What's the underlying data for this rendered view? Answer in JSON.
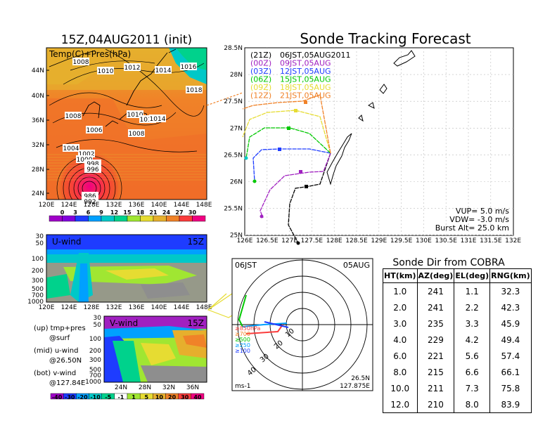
{
  "init_title": "15Z,04AUG2011 (init)",
  "forecast_title": "Sonde Tracking Forecast",
  "map": {
    "field_label": "Temp(C)+Pres(hPa)",
    "lat_labels": [
      "44N",
      "40N",
      "36N",
      "32N",
      "28N",
      "24N"
    ],
    "lon_labels": [
      "120E",
      "124E",
      "128E",
      "132E",
      "136E",
      "140E",
      "144E",
      "148E"
    ],
    "isobar_labels": [
      "1008",
      "1010",
      "1012",
      "1014",
      "1016",
      "1018",
      "1008",
      "1010",
      "1012",
      "1014",
      "1006",
      "1008",
      "1004",
      "1002",
      "1000",
      "998",
      "996",
      "986",
      "992"
    ],
    "colorbar_ticks": [
      "0",
      "3",
      "6",
      "9",
      "12",
      "15",
      "18",
      "21",
      "24",
      "27",
      "30"
    ],
    "colorbar_colors": [
      "#a000c8",
      "#8200dc",
      "#1e3cff",
      "#00a0ff",
      "#00c8c8",
      "#00d28c",
      "#a0e632",
      "#e6dc32",
      "#e6af2d",
      "#f08228",
      "#fa3c3c",
      "#f00082"
    ]
  },
  "uwind": {
    "label": "U-wind",
    "time": "15Z",
    "p_labels": [
      "30",
      "50",
      "100",
      "200",
      "300",
      "500",
      "700",
      "1000"
    ],
    "lon_labels": [
      "120E",
      "124E",
      "128E",
      "132E",
      "136E",
      "140E",
      "144E",
      "148E"
    ]
  },
  "vwind": {
    "label": "V-wind",
    "time": "15Z",
    "p_labels": [
      "30",
      "50",
      "100",
      "200",
      "300",
      "500",
      "700",
      "1000"
    ],
    "lat_labels": [
      "24N",
      "28N",
      "32N",
      "36N"
    ],
    "colorbar_ticks": [
      "-40",
      "-30",
      "-20",
      "-10",
      "-5",
      "-1",
      "1",
      "5",
      "10",
      "20",
      "30",
      "40"
    ],
    "colorbar_colors": [
      "#a000c8",
      "#1e3cff",
      "#00a0ff",
      "#00c8c8",
      "#00d28c",
      "#ffffff",
      "#a0e632",
      "#e6dc32",
      "#e6af2d",
      "#f08228",
      "#fa3c3c",
      "#f00082"
    ]
  },
  "legend_notes": {
    "up": "(up) tmp+pres",
    "up2": "@surf",
    "mid": "(mid) u-wind",
    "mid2": "@26.50N",
    "bot": "(bot) v-wind",
    "bot2": "@127.84E"
  },
  "tracking": {
    "lat_labels": [
      "28.5N",
      "28N",
      "27.5N",
      "27N",
      "26.5N",
      "26N",
      "25.5N",
      "25N"
    ],
    "lon_labels": [
      "126E",
      "126.5E",
      "127E",
      "127.5E",
      "128E",
      "128.5E",
      "129E",
      "129.5E",
      "130E",
      "130.5E",
      "131E",
      "131.5E",
      "132E"
    ],
    "launches": [
      {
        "code": "(21Z)",
        "time": "06JST,05AUG2011",
        "color": "#000000"
      },
      {
        "code": "(00Z)",
        "time": "09JST,05AUG",
        "color": "#a020c0"
      },
      {
        "code": "(03Z)",
        "time": "12JST,05AUG",
        "color": "#1e3cff"
      },
      {
        "code": "(06Z)",
        "time": "15JST,05AUG",
        "color": "#00c800"
      },
      {
        "code": "(09Z)",
        "time": "18JST,05AUG",
        "color": "#e6dc32"
      },
      {
        "code": "(12Z)",
        "time": "21JST,05AUG",
        "color": "#f08228"
      }
    ],
    "params": [
      "VUP= 5.0 m/s",
      "VDW= -3.0 m/s",
      "Burst Alt= 25.0 km"
    ]
  },
  "polar": {
    "time_label": "06JST",
    "date_label": "05AUG",
    "range_labels": [
      "10",
      "20",
      "30",
      "40"
    ],
    "level_labels": [
      "≥850hPa",
      "≥700",
      "≥500",
      "≥250",
      "≥100"
    ],
    "level_colors": [
      "#fa3c3c",
      "#f08228",
      "#00c800",
      "#00a0ff",
      "#1e3cff"
    ],
    "unit": "ms-1",
    "loc1": "26.5N",
    "loc2": "127.875E"
  },
  "cobra": {
    "title": "Sonde Dir from COBRA",
    "headers": [
      "HT(km)",
      "AZ(deg)",
      "EL(deg)",
      "RNG(km)"
    ],
    "rows": [
      [
        "1.0",
        "241",
        "1.1",
        "32.3"
      ],
      [
        "2.0",
        "241",
        "2.2",
        "42.3"
      ],
      [
        "3.0",
        "235",
        "3.3",
        "45.9"
      ],
      [
        "4.0",
        "229",
        "4.2",
        "49.4"
      ],
      [
        "6.0",
        "221",
        "5.6",
        "57.4"
      ],
      [
        "8.0",
        "215",
        "6.6",
        "66.1"
      ],
      [
        "10.0",
        "211",
        "7.3",
        "75.8"
      ],
      [
        "12.0",
        "210",
        "8.0",
        "83.9"
      ]
    ]
  }
}
